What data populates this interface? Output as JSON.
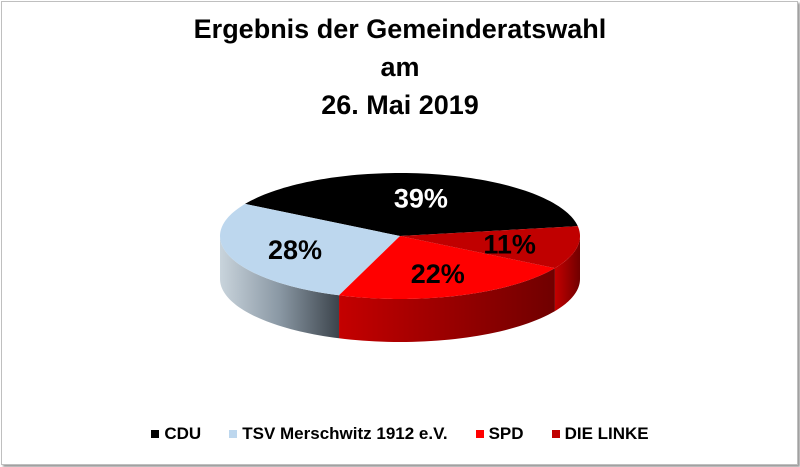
{
  "chart_data": {
    "type": "pie",
    "title_lines": [
      "Ergebnis der Gemeinderatswahl",
      "am",
      "26. Mai 2019"
    ],
    "categories": [
      "CDU",
      "TSV Merschwitz 1912 e.V.",
      "SPD",
      "DIE LINKE"
    ],
    "values": [
      39,
      28,
      22,
      11
    ],
    "data_labels": [
      "39%",
      "28%",
      "22%",
      "11%"
    ],
    "colors": [
      "#000000",
      "#bdd7ee",
      "#ff0000",
      "#c00000"
    ],
    "label_colors": [
      "#ffffff",
      "#000000",
      "#000000",
      "#000000"
    ],
    "legend_position": "bottom",
    "style": "3d"
  }
}
